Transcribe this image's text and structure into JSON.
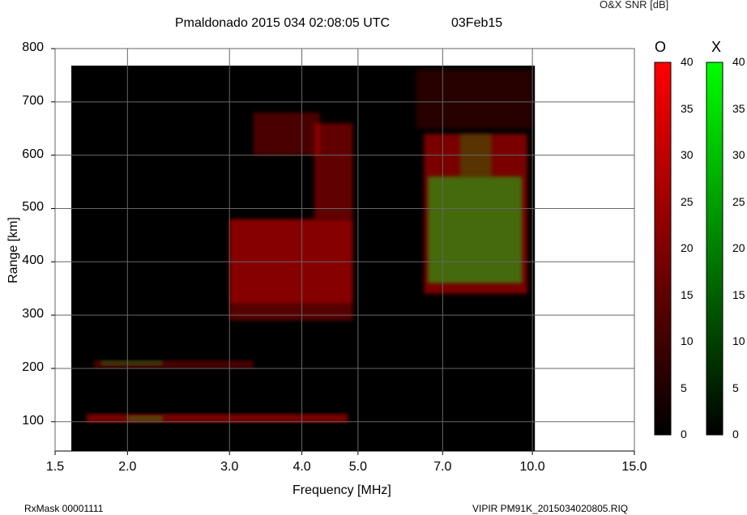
{
  "header": {
    "title": "Pmaldonado 2015 034 02:08:05 UTC",
    "date": "03Feb15",
    "snr_title": "O&X SNR [dB]"
  },
  "footer": {
    "rxmask": "RxMask 00001111",
    "file": "VIPIR  PM91K_2015034020805.RIQ"
  },
  "chart_data": {
    "type": "heatmap",
    "title": "Pmaldonado 2015 034 02:08:05 UTC",
    "xlabel": "Frequency [MHz]",
    "ylabel": "Range [km]",
    "x_scale": "log",
    "xlim": [
      1.5,
      15.0
    ],
    "ylim": [
      45,
      800
    ],
    "x_ticks": [
      "1.5",
      "2.0",
      "3.0",
      "4.0",
      "5.0",
      "7.0",
      "10.0",
      "15.0"
    ],
    "y_ticks": [
      "100",
      "200",
      "300",
      "400",
      "500",
      "600",
      "700",
      "800"
    ],
    "data_extent": {
      "freq_mhz": [
        1.6,
        10.1
      ],
      "range_km": [
        45,
        768
      ]
    },
    "grid": true,
    "colorbars": [
      {
        "label": "O",
        "min": 0,
        "max": 40,
        "ticks": [
          "40",
          "35",
          "30",
          "25",
          "20",
          "15",
          "10",
          "5",
          "0"
        ],
        "color": "#ff0000"
      },
      {
        "label": "X",
        "min": 0,
        "max": 40,
        "ticks": [
          "40",
          "35",
          "30",
          "25",
          "20",
          "15",
          "10",
          "5",
          "0"
        ],
        "color": "#00ff00"
      }
    ],
    "o_mode_echoes": [
      {
        "freq_mhz": [
          1.75,
          3.3
        ],
        "range_km": [
          200,
          215
        ],
        "snr_db": 15
      },
      {
        "freq_mhz": [
          1.7,
          4.8
        ],
        "range_km": [
          98,
          115
        ],
        "snr_db": 25
      },
      {
        "freq_mhz": [
          3.0,
          4.9
        ],
        "range_km": [
          290,
          320
        ],
        "snr_db": 18
      },
      {
        "freq_mhz": [
          3.0,
          4.9
        ],
        "range_km": [
          320,
          480
        ],
        "snr_db": 28
      },
      {
        "freq_mhz": [
          4.2,
          4.9
        ],
        "range_km": [
          480,
          660
        ],
        "snr_db": 20
      },
      {
        "freq_mhz": [
          3.3,
          4.3
        ],
        "range_km": [
          600,
          680
        ],
        "snr_db": 15
      },
      {
        "freq_mhz": [
          6.5,
          9.8
        ],
        "range_km": [
          340,
          640
        ],
        "snr_db": 25
      },
      {
        "freq_mhz": [
          6.3,
          10.0
        ],
        "range_km": [
          650,
          760
        ],
        "snr_db": 8
      }
    ],
    "x_mode_echoes": [
      {
        "freq_mhz": [
          1.8,
          2.3
        ],
        "range_km": [
          205,
          215
        ],
        "snr_db": 14
      },
      {
        "freq_mhz": [
          2.0,
          2.3
        ],
        "range_km": [
          100,
          112
        ],
        "snr_db": 16
      },
      {
        "freq_mhz": [
          6.6,
          9.6
        ],
        "range_km": [
          360,
          560
        ],
        "snr_db": 25
      },
      {
        "freq_mhz": [
          7.5,
          8.5
        ],
        "range_km": [
          560,
          640
        ],
        "snr_db": 12
      }
    ]
  }
}
